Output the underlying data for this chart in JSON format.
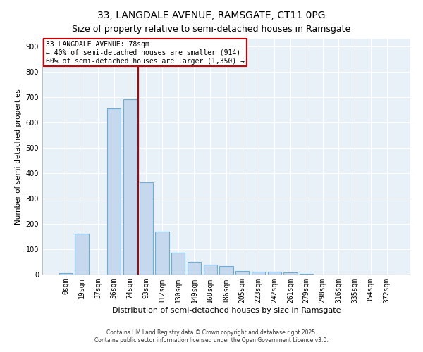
{
  "title": "33, LANGDALE AVENUE, RAMSGATE, CT11 0PG",
  "subtitle": "Size of property relative to semi-detached houses in Ramsgate",
  "xlabel": "Distribution of semi-detached houses by size in Ramsgate",
  "ylabel": "Number of semi-detached properties",
  "bar_labels": [
    "0sqm",
    "19sqm",
    "37sqm",
    "56sqm",
    "74sqm",
    "93sqm",
    "112sqm",
    "130sqm",
    "149sqm",
    "168sqm",
    "186sqm",
    "205sqm",
    "223sqm",
    "242sqm",
    "261sqm",
    "279sqm",
    "298sqm",
    "316sqm",
    "335sqm",
    "354sqm",
    "372sqm"
  ],
  "bar_values": [
    5,
    160,
    0,
    655,
    690,
    365,
    170,
    85,
    50,
    38,
    33,
    14,
    12,
    10,
    7,
    3,
    0,
    0,
    0,
    0,
    0
  ],
  "bar_color": "#c5d8ee",
  "bar_edge_color": "#6baed6",
  "vline_x_index": 4.5,
  "vline_color": "#bb0000",
  "annotation_title": "33 LANGDALE AVENUE: 78sqm",
  "annotation_line1": "← 40% of semi-detached houses are smaller (914)",
  "annotation_line2": "60% of semi-detached houses are larger (1,350) →",
  "annotation_box_color": "#ffffff",
  "annotation_box_edge_color": "#cc0000",
  "ylim": [
    0,
    930
  ],
  "yticks": [
    0,
    100,
    200,
    300,
    400,
    500,
    600,
    700,
    800,
    900
  ],
  "footnote1": "Contains HM Land Registry data © Crown copyright and database right 2025.",
  "footnote2": "Contains public sector information licensed under the Open Government Licence v3.0.",
  "bg_color": "#ffffff",
  "plot_bg_color": "#e8f0f8",
  "title_fontsize": 10,
  "subtitle_fontsize": 9,
  "xlabel_fontsize": 8,
  "ylabel_fontsize": 7.5,
  "tick_fontsize": 7,
  "footnote_fontsize": 5.5
}
